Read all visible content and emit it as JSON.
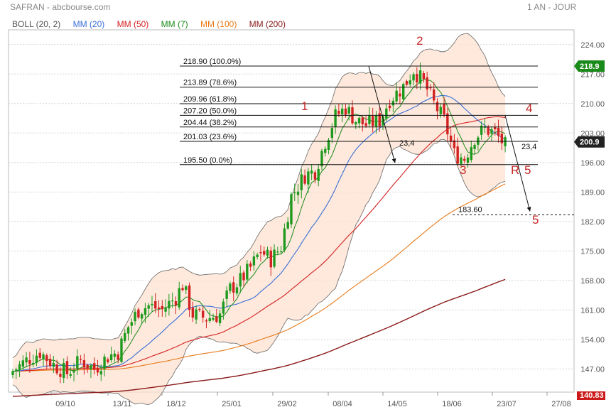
{
  "header": {
    "title": "SAFRAN - abcbourse.com",
    "period": "1 AN - JOUR"
  },
  "legend": [
    {
      "label": "BOLL (20, 2)",
      "color": "#555555"
    },
    {
      "label": "MM (20)",
      "color": "#3a6fd8"
    },
    {
      "label": "MM (50)",
      "color": "#d42020"
    },
    {
      "label": "MM (7)",
      "color": "#1a8a1a"
    },
    {
      "label": "MM (100)",
      "color": "#e87a1a"
    },
    {
      "label": "MM (200)",
      "color": "#8a1a1a"
    }
  ],
  "chart_data": {
    "type": "candlestick",
    "title": "SAFRAN - abcbourse.com",
    "period": "1 AN - JOUR",
    "ylim": [
      141.5,
      227.5
    ],
    "y_ticks": [
      147.0,
      154.0,
      161.0,
      168.0,
      175.0,
      182.0,
      189.0,
      196.0,
      203.0,
      210.0,
      217.0,
      224.0
    ],
    "x_ticks": [
      "09/10",
      "13/11",
      "18/12",
      "25/01",
      "29/02",
      "08/04",
      "14/05",
      "18/06",
      "23/07",
      "27/08"
    ],
    "last_price": "218.9",
    "current_price": "200.9",
    "bottom_price_label": "140.83",
    "price_path": [
      [
        0,
        146.5
      ],
      [
        4,
        149
      ],
      [
        8,
        151
      ],
      [
        12,
        148
      ],
      [
        16,
        146
      ],
      [
        20,
        149
      ],
      [
        24,
        147
      ],
      [
        28,
        150
      ],
      [
        31,
        151
      ],
      [
        34,
        157
      ],
      [
        37,
        161
      ],
      [
        40,
        162
      ],
      [
        44,
        161
      ],
      [
        48,
        164
      ],
      [
        50,
        167
      ],
      [
        53,
        160
      ],
      [
        57,
        159
      ],
      [
        61,
        160
      ],
      [
        64,
        166
      ],
      [
        67,
        168
      ],
      [
        70,
        171
      ],
      [
        73,
        175
      ],
      [
        76,
        173
      ],
      [
        79,
        176
      ],
      [
        82,
        188
      ],
      [
        86,
        193
      ],
      [
        89,
        194
      ],
      [
        92,
        201
      ],
      [
        95,
        207
      ],
      [
        98,
        209
      ],
      [
        101,
        206
      ],
      [
        104,
        205
      ],
      [
        108,
        206
      ],
      [
        111,
        211
      ],
      [
        115,
        214
      ],
      [
        118,
        218
      ],
      [
        121,
        215
      ],
      [
        124,
        210
      ],
      [
        127,
        206
      ],
      [
        130,
        198
      ],
      [
        133,
        197
      ],
      [
        136,
        202
      ],
      [
        139,
        204
      ],
      [
        142,
        203
      ],
      [
        145,
        200
      ]
    ],
    "fibonacci": [
      {
        "label": "218.90  (100.0%)",
        "value": 218.9
      },
      {
        "label": "213.89  (78.6%)",
        "value": 213.89
      },
      {
        "label": "209.96  (61.8%)",
        "value": 209.96
      },
      {
        "label": "207.20  (50.0%)",
        "value": 207.2
      },
      {
        "label": "204.44  (38.2%)",
        "value": 204.44
      },
      {
        "label": "201.03  (23.6%)",
        "value": 201.03
      },
      {
        "label": "195.50  (0.0%)",
        "value": 195.5
      }
    ],
    "target_line": {
      "label": "183.60",
      "value": 183.6
    },
    "annotations": [
      {
        "text": "1",
        "color": "#c62828"
      },
      {
        "text": "2",
        "color": "#c62828"
      },
      {
        "text": "3",
        "color": "#c62828"
      },
      {
        "text": "4",
        "color": "#c62828"
      },
      {
        "text": "R",
        "color": "#c62828"
      },
      {
        "text": "5",
        "color": "#c62828"
      },
      {
        "text": "5",
        "color": "#c62828"
      },
      {
        "text": "23,4",
        "color": "#111111"
      },
      {
        "text": "23,4",
        "color": "#111111"
      }
    ],
    "colors": {
      "up": "#1f9a1f",
      "down": "#d32222",
      "band_fill": "#fde2d0",
      "band_edge": "#666666",
      "ma20": "#3a6fd8",
      "ma50": "#d42020",
      "ma7": "#1a8a1a",
      "ma100": "#e87a1a",
      "ma200": "#8a1a1a",
      "last_badge": "#1a8a1a",
      "current_badge": "#222222",
      "bottom_badge": "#cc1a1a"
    }
  }
}
